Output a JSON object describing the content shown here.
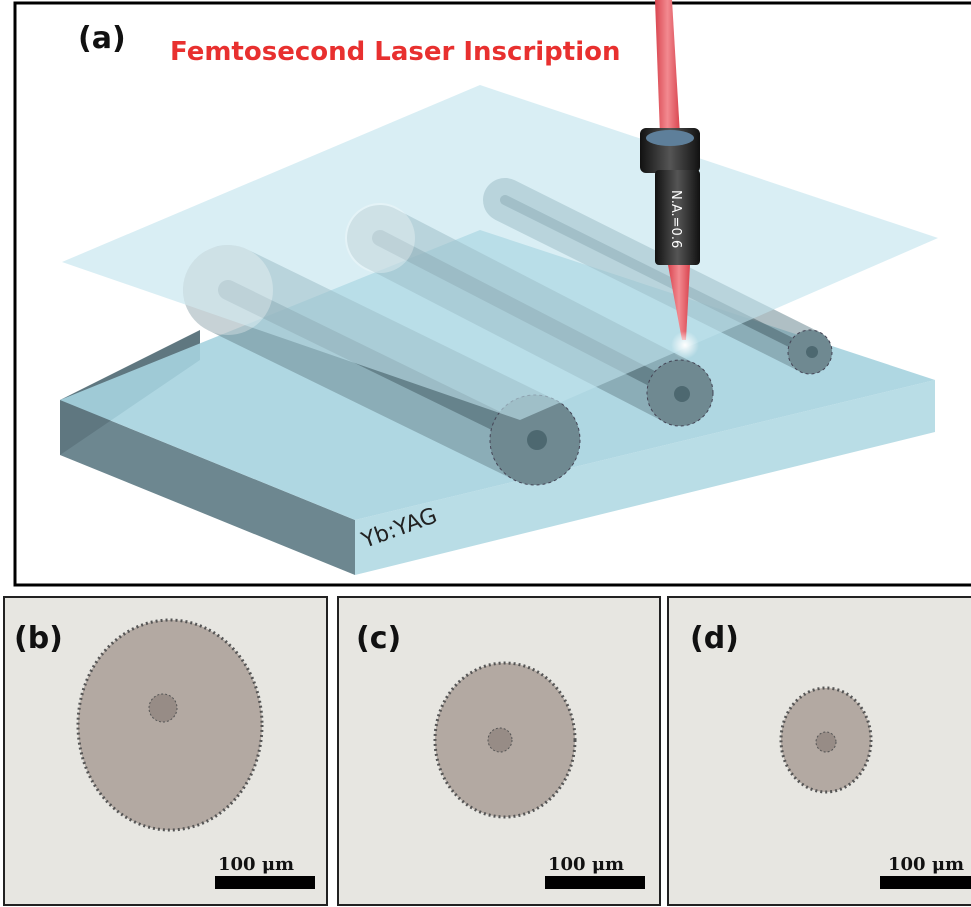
{
  "panel_a": {
    "label": "(a)",
    "title": "Femtosecond Laser Inscription",
    "objective_label": "N.A.=0.6",
    "crystal_label": "Yb:YAG"
  },
  "panels": [
    {
      "label": "(b)",
      "scale_bar": "100 μm"
    },
    {
      "label": "(c)",
      "scale_bar": "100 μm"
    },
    {
      "label": "(d)",
      "scale_bar": "100 μm"
    }
  ]
}
